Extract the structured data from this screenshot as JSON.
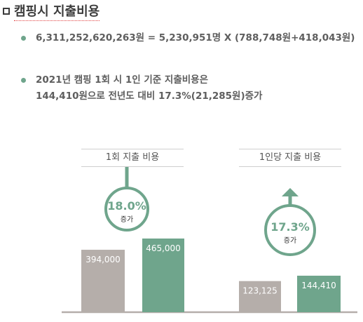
{
  "title": "캠핑시 지출비용",
  "bullets": [
    {
      "lines": [
        "6,311,252,620,263원 = 5,230,951명 X (788,748원+418,043원)"
      ]
    },
    {
      "lines": [
        "2021년 캠핑 1회 시 1인 기준 지출비용은",
        "144,410원으로 전년도 대비 17.3%(21,285원)증가"
      ]
    }
  ],
  "colors": {
    "accent": "#6fa58c",
    "bar_prev": "#b5aeaa",
    "bar_curr": "#6fa58c",
    "baseline": "#b5aeaa"
  },
  "chart_data": [
    {
      "type": "bar",
      "title": "1회 지출 비용",
      "values": [
        394000,
        465000
      ],
      "value_labels": [
        "394,000",
        "465,000"
      ],
      "ylim": [
        0,
        500000
      ],
      "change_percent": "18.0%",
      "change_label": "증가"
    },
    {
      "type": "bar",
      "title": "1인당 지출 비용",
      "values": [
        123125,
        144410
      ],
      "value_labels": [
        "123,125",
        "144,410"
      ],
      "ylim": [
        0,
        500000
      ],
      "change_percent": "17.3%",
      "change_label": "증가"
    }
  ]
}
